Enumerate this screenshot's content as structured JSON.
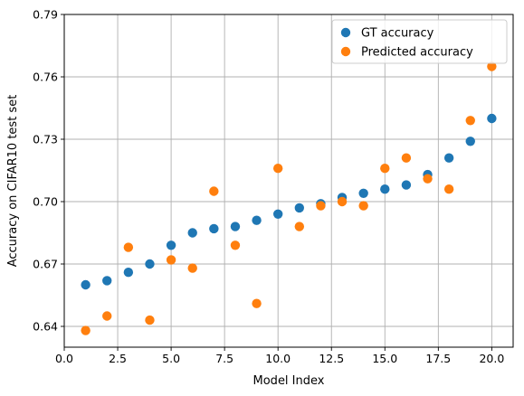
{
  "chart_data": {
    "type": "scatter",
    "xlabel": "Model Index",
    "ylabel": "Accuracy on CIFAR10 test set",
    "xlim": [
      0,
      21
    ],
    "ylim": [
      0.63,
      0.79
    ],
    "x_ticks": [
      0.0,
      2.5,
      5.0,
      7.5,
      10.0,
      12.5,
      15.0,
      17.5,
      20.0
    ],
    "x_tick_labels": [
      "0.0",
      "2.5",
      "5.0",
      "7.5",
      "10.0",
      "12.5",
      "15.0",
      "17.5",
      "20.0"
    ],
    "y_ticks": [
      0.64,
      0.67,
      0.7,
      0.73,
      0.76,
      0.79
    ],
    "y_tick_labels": [
      "0.64",
      "0.67",
      "0.70",
      "0.73",
      "0.76",
      "0.79"
    ],
    "grid": true,
    "legend_position": "top-right",
    "series": [
      {
        "name": "GT accuracy",
        "color": "#1f77b4",
        "x": [
          1,
          2,
          3,
          4,
          5,
          6,
          7,
          8,
          9,
          10,
          11,
          12,
          13,
          14,
          15,
          16,
          17,
          18,
          19,
          20
        ],
        "y": [
          0.66,
          0.662,
          0.666,
          0.67,
          0.679,
          0.685,
          0.687,
          0.688,
          0.691,
          0.694,
          0.697,
          0.699,
          0.702,
          0.704,
          0.706,
          0.708,
          0.713,
          0.721,
          0.729,
          0.74
        ]
      },
      {
        "name": "Predicted accuracy",
        "color": "#ff7f0e",
        "x": [
          1,
          2,
          3,
          4,
          5,
          6,
          7,
          8,
          9,
          10,
          11,
          12,
          13,
          14,
          15,
          16,
          17,
          18,
          19,
          20
        ],
        "y": [
          0.638,
          0.645,
          0.678,
          0.643,
          0.672,
          0.668,
          0.705,
          0.679,
          0.651,
          0.716,
          0.688,
          0.698,
          0.7,
          0.698,
          0.716,
          0.721,
          0.711,
          0.706,
          0.739,
          0.765
        ]
      }
    ]
  }
}
